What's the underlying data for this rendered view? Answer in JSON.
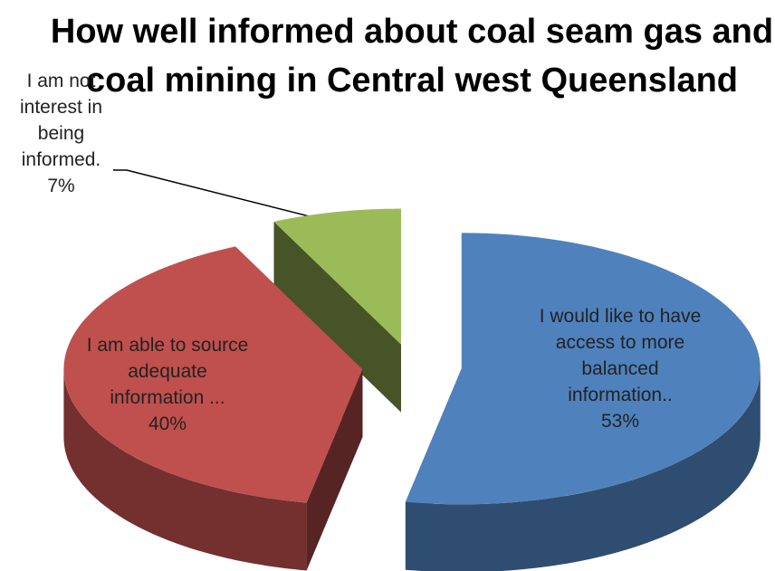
{
  "chart_data": {
    "type": "pie",
    "title": "How well informed about coal seam gas and coal mining in Central west Queensland",
    "categories": [
      "I would like to have access to more balanced information..",
      "I am able to source adequate information ...",
      "I am not interest in being informed."
    ],
    "values": [
      53,
      40,
      7
    ],
    "value_labels": [
      "53%",
      "40%",
      "7%"
    ],
    "colors": [
      "#4f81bd",
      "#c0504d",
      "#9bbb59"
    ]
  }
}
